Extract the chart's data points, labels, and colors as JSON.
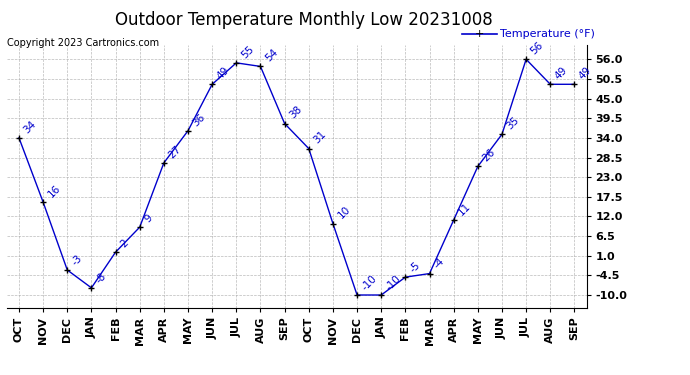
{
  "title": "Outdoor Temperature Monthly Low 20231008",
  "copyright_text": "Copyright 2023 Cartronics.com",
  "legend_text": "Temperature (°F)",
  "x_labels": [
    "OCT",
    "NOV",
    "DEC",
    "JAN",
    "FEB",
    "MAR",
    "APR",
    "MAY",
    "JUN",
    "JUL",
    "AUG",
    "SEP",
    "OCT",
    "NOV",
    "DEC",
    "JAN",
    "FEB",
    "MAR",
    "APR",
    "MAY",
    "JUN",
    "JUL",
    "AUG",
    "SEP"
  ],
  "y_values": [
    34,
    16,
    -3,
    -8,
    2,
    9,
    27,
    36,
    49,
    55,
    54,
    38,
    31,
    10,
    -10,
    -10,
    -5,
    -4,
    11,
    26,
    35,
    56,
    49,
    49
  ],
  "y_labels": [
    -10.0,
    -4.5,
    1.0,
    6.5,
    12.0,
    17.5,
    23.0,
    28.5,
    34.0,
    39.5,
    45.0,
    50.5,
    56.0
  ],
  "ylim": [
    -13.5,
    60
  ],
  "line_color": "#0000cc",
  "marker_color": "#000000",
  "grid_color": "#aaaaaa",
  "bg_color": "#ffffff",
  "title_color": "#000000",
  "label_color": "#0000cc",
  "legend_color": "#0000cc",
  "title_fontsize": 12,
  "tick_fontsize": 8,
  "annotation_fontsize": 7.5,
  "copyright_fontsize": 7
}
